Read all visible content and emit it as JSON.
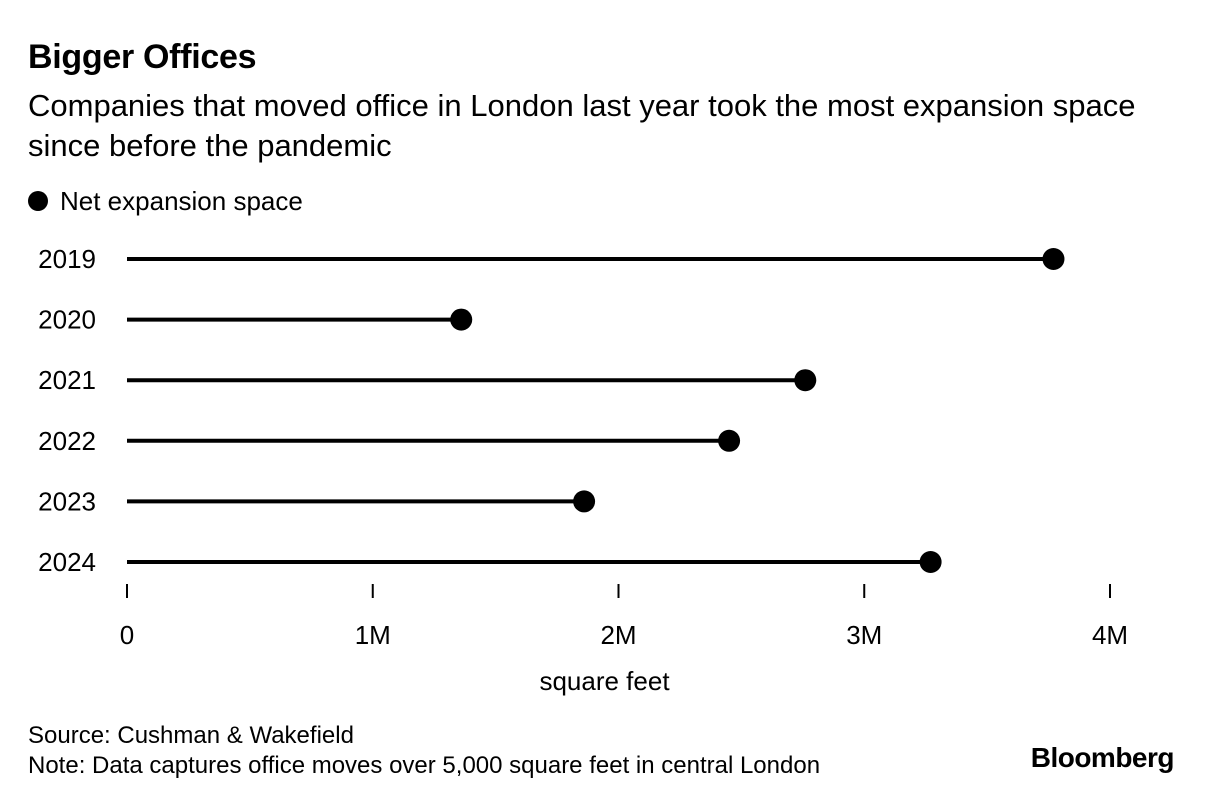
{
  "chart_data": {
    "type": "dot",
    "title": "Bigger Offices",
    "subtitle": "Companies that moved office in London last year took the most expansion space since before the pandemic",
    "legend": [
      {
        "name": "Net expansion space",
        "color": "#000000"
      }
    ],
    "categories": [
      "2019",
      "2020",
      "2021",
      "2022",
      "2023",
      "2024"
    ],
    "series": [
      {
        "name": "Net expansion space",
        "values": [
          3770000,
          1360000,
          2760000,
          2450000,
          1860000,
          3270000
        ]
      }
    ],
    "xlabel": "square feet",
    "xlim": [
      0,
      4000000
    ],
    "xticks": [
      0,
      1000000,
      2000000,
      3000000,
      4000000
    ],
    "xtick_labels": [
      "0",
      "1M",
      "2M",
      "3M",
      "4M"
    ],
    "legend_position": "top-left"
  },
  "footer": {
    "source": "Source: Cushman & Wakefield",
    "note": "Note: Data captures office moves over 5,000 square feet in central London",
    "brand": "Bloomberg"
  },
  "colors": {
    "ink": "#000000",
    "background": "#ffffff"
  }
}
